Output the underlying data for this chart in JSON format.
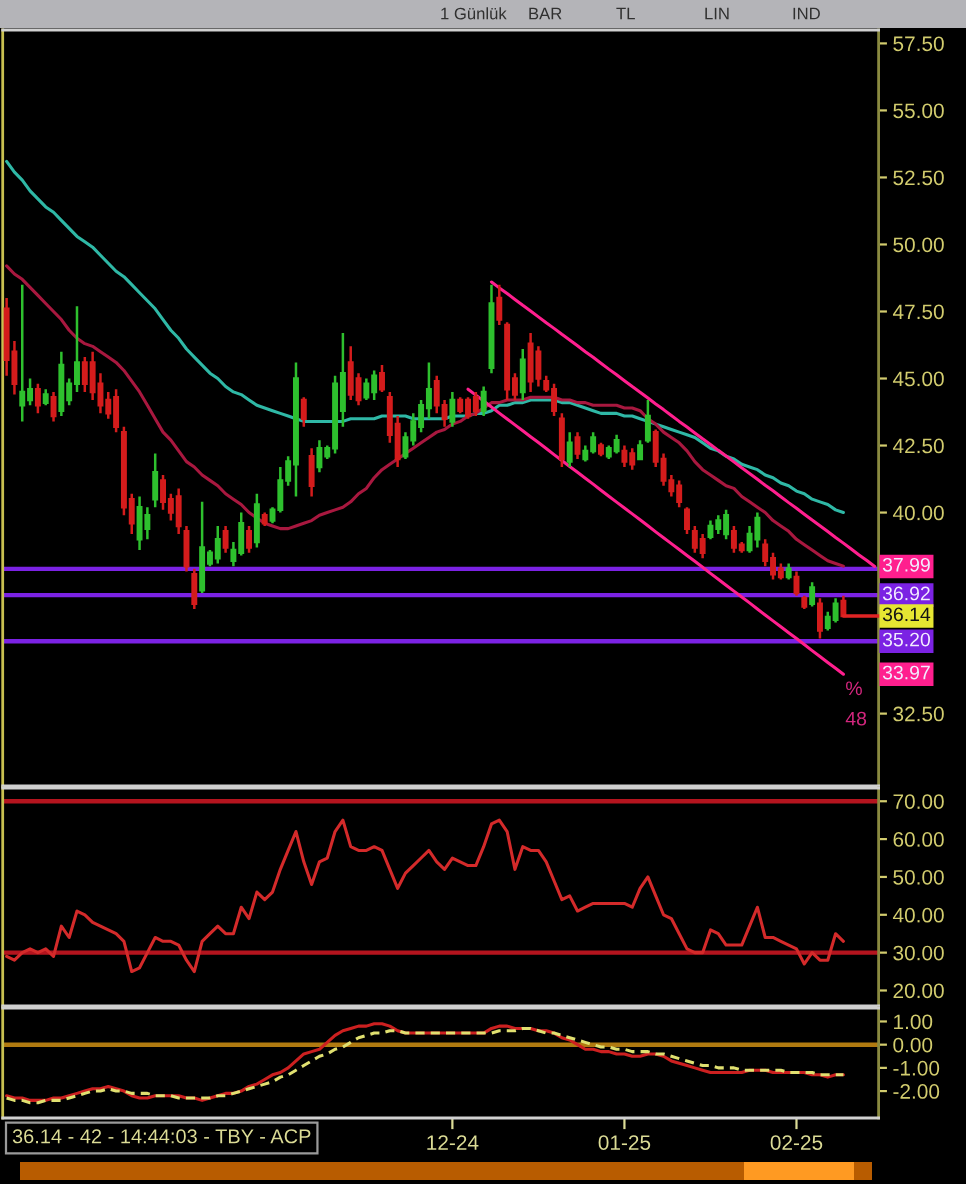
{
  "chart_data": [
    {
      "type": "other",
      "annotations": [
        "1 Günlük",
        "BAR",
        "TL",
        "LIN",
        "IND"
      ]
    },
    {
      "type": "candlestick",
      "categories": [
        null,
        null,
        null,
        null,
        null,
        null,
        null,
        null,
        null,
        null,
        null,
        null,
        null,
        null,
        null,
        null,
        null,
        null,
        null,
        null,
        null,
        null,
        null,
        null,
        null,
        null,
        null,
        null,
        null,
        null,
        null,
        null,
        null,
        null,
        null,
        null,
        null,
        null,
        null,
        null,
        null,
        null,
        null,
        null,
        null,
        null,
        null,
        null,
        null,
        null,
        null,
        null,
        null,
        null,
        null,
        null,
        null,
        null,
        null,
        null,
        null,
        null,
        null,
        null,
        null,
        null,
        null,
        null,
        null,
        null,
        null,
        null,
        null,
        null,
        null,
        null,
        null,
        null,
        null,
        null,
        null,
        null,
        null,
        null,
        null,
        null,
        null,
        null,
        null,
        null,
        null,
        null,
        null,
        null,
        null,
        null,
        null,
        null,
        null,
        null,
        null,
        null,
        null,
        null,
        null,
        null,
        null,
        null,
        null,
        null,
        null,
        null
      ],
      "ylim": [
        29.8,
        58.0
      ],
      "yticks": [
        {
          "value": 57.5,
          "label": "57.50"
        },
        {
          "value": 55,
          "label": "55.00"
        },
        {
          "value": 52.5,
          "label": "52.50"
        },
        {
          "value": 50,
          "label": "50.00"
        },
        {
          "value": 47.5,
          "label": "47.50"
        },
        {
          "value": 45,
          "label": "45.00"
        },
        {
          "value": 42.5,
          "label": "42.50"
        },
        {
          "value": 40,
          "label": "40.00"
        },
        {
          "value": 32.5,
          "label": "32.50"
        }
      ],
      "ohlc": [
        [
          47.6,
          48.0,
          45.1,
          45.7
        ],
        [
          46.0,
          46.4,
          44.4,
          44.8
        ],
        [
          44.0,
          48.5,
          43.4,
          44.5
        ],
        [
          44.2,
          45.0,
          44.0,
          44.6
        ],
        [
          44.6,
          44.8,
          43.7,
          44.0
        ],
        [
          44.1,
          44.6,
          44.0,
          44.4
        ],
        [
          44.3,
          44.5,
          43.4,
          43.6
        ],
        [
          43.8,
          46.0,
          43.6,
          45.5
        ],
        [
          44.2,
          45.0,
          44.0,
          44.8
        ],
        [
          44.8,
          47.7,
          44.5,
          45.6
        ],
        [
          45.6,
          45.8,
          44.5,
          44.8
        ],
        [
          45.6,
          46.0,
          44.2,
          44.5
        ],
        [
          44.8,
          45.2,
          43.7,
          44.0
        ],
        [
          44.2,
          44.5,
          43.5,
          43.7
        ],
        [
          44.3,
          44.6,
          43.0,
          43.2
        ],
        [
          43.0,
          43.2,
          39.9,
          40.2
        ],
        [
          40.5,
          40.7,
          39.2,
          39.6
        ],
        [
          39.0,
          40.6,
          38.6,
          40.2
        ],
        [
          39.4,
          40.2,
          39.0,
          39.9
        ],
        [
          40.5,
          42.2,
          40.2,
          41.5
        ],
        [
          41.2,
          41.4,
          40.1,
          40.4
        ],
        [
          40.5,
          40.7,
          39.7,
          40.0
        ],
        [
          40.6,
          40.9,
          39.2,
          39.5
        ],
        [
          39.3,
          39.5,
          37.8,
          38.0
        ],
        [
          37.7,
          37.9,
          36.4,
          36.6
        ],
        [
          37.1,
          40.4,
          37.0,
          38.7
        ],
        [
          38.1,
          38.6,
          38.0,
          38.5
        ],
        [
          38.3,
          39.5,
          38.1,
          39.0
        ],
        [
          39.3,
          39.5,
          38.5,
          38.7
        ],
        [
          38.2,
          38.9,
          38.0,
          38.6
        ],
        [
          38.5,
          40.0,
          38.4,
          39.6
        ],
        [
          39.3,
          39.5,
          38.5,
          38.7
        ],
        [
          38.9,
          40.7,
          38.7,
          40.3
        ],
        [
          39.9,
          40.0,
          39.5,
          39.6
        ],
        [
          39.7,
          40.2,
          39.6,
          40.1
        ],
        [
          40.1,
          41.7,
          40.0,
          41.2
        ],
        [
          41.2,
          42.1,
          41.0,
          41.9
        ],
        [
          41.8,
          45.6,
          40.6,
          45.0
        ],
        [
          44.2,
          44.3,
          43.2,
          43.5
        ],
        [
          42.1,
          42.4,
          40.6,
          41.0
        ],
        [
          41.7,
          42.7,
          41.5,
          42.4
        ],
        [
          42.1,
          42.5,
          42.0,
          42.4
        ],
        [
          42.4,
          45.1,
          42.2,
          44.8
        ],
        [
          43.8,
          46.7,
          43.2,
          45.2
        ],
        [
          45.6,
          46.2,
          44.2,
          44.4
        ],
        [
          45.0,
          45.2,
          44.0,
          44.2
        ],
        [
          44.3,
          45.0,
          44.2,
          44.8
        ],
        [
          44.5,
          45.3,
          44.2,
          45.1
        ],
        [
          45.2,
          45.5,
          44.5,
          44.6
        ],
        [
          44.3,
          44.5,
          42.6,
          42.9
        ],
        [
          43.3,
          43.6,
          41.7,
          42.0
        ],
        [
          42.1,
          43.0,
          42.0,
          42.8
        ],
        [
          42.7,
          43.7,
          42.5,
          43.4
        ],
        [
          43.2,
          44.2,
          43.0,
          44.0
        ],
        [
          43.9,
          45.6,
          43.5,
          44.6
        ],
        [
          44.9,
          45.1,
          43.7,
          44.0
        ],
        [
          44.0,
          44.2,
          43.2,
          43.5
        ],
        [
          43.4,
          44.5,
          43.2,
          44.2
        ],
        [
          44.2,
          44.3,
          43.7,
          43.8
        ],
        [
          44.2,
          44.3,
          43.5,
          43.6
        ],
        [
          44.3,
          44.5,
          43.6,
          43.8
        ],
        [
          43.8,
          44.7,
          43.6,
          44.5
        ],
        [
          45.4,
          48.5,
          45.2,
          47.8
        ],
        [
          48.0,
          48.5,
          47.0,
          47.2
        ],
        [
          47.0,
          47.1,
          44.2,
          44.6
        ],
        [
          45.0,
          45.2,
          44.2,
          44.4
        ],
        [
          44.5,
          46.1,
          44.2,
          45.7
        ],
        [
          46.3,
          46.7,
          44.5,
          44.9
        ],
        [
          46.0,
          46.2,
          44.7,
          45.0
        ],
        [
          44.9,
          45.1,
          44.5,
          44.6
        ],
        [
          44.6,
          44.8,
          43.6,
          43.8
        ],
        [
          43.5,
          43.7,
          41.7,
          42.0
        ],
        [
          41.9,
          43.0,
          41.7,
          42.6
        ],
        [
          42.8,
          43.0,
          42.0,
          42.2
        ],
        [
          42.0,
          42.5,
          41.9,
          42.3
        ],
        [
          42.3,
          43.0,
          42.2,
          42.8
        ],
        [
          42.5,
          42.6,
          42.1,
          42.2
        ],
        [
          42.1,
          42.5,
          42.0,
          42.4
        ],
        [
          42.3,
          42.9,
          42.2,
          42.7
        ],
        [
          42.3,
          42.5,
          41.7,
          41.9
        ],
        [
          42.2,
          42.4,
          41.6,
          41.8
        ],
        [
          42.0,
          42.7,
          42.0,
          42.5
        ],
        [
          42.7,
          44.2,
          42.6,
          43.6
        ],
        [
          43.0,
          43.1,
          41.7,
          41.9
        ],
        [
          42.0,
          42.2,
          41.0,
          41.2
        ],
        [
          41.2,
          41.4,
          40.6,
          40.8
        ],
        [
          41.0,
          41.2,
          40.2,
          40.4
        ],
        [
          40.1,
          40.2,
          39.2,
          39.4
        ],
        [
          39.3,
          39.5,
          38.5,
          38.7
        ],
        [
          39.0,
          39.2,
          38.3,
          38.5
        ],
        [
          39.1,
          39.7,
          39.0,
          39.5
        ],
        [
          39.4,
          39.9,
          39.2,
          39.7
        ],
        [
          39.2,
          40.1,
          39.0,
          39.9
        ],
        [
          39.3,
          39.5,
          38.5,
          38.7
        ],
        [
          38.8,
          38.9,
          38.5,
          38.6
        ],
        [
          38.6,
          39.5,
          38.5,
          39.2
        ],
        [
          39.0,
          40.0,
          38.7,
          39.8
        ],
        [
          38.8,
          39.0,
          38.0,
          38.2
        ],
        [
          38.3,
          38.5,
          37.5,
          37.7
        ],
        [
          37.9,
          38.1,
          37.5,
          37.6
        ],
        [
          37.6,
          38.1,
          37.5,
          37.9
        ],
        [
          37.6,
          37.8,
          36.9,
          37.0
        ],
        [
          36.8,
          36.9,
          36.4,
          36.5
        ],
        [
          36.6,
          37.4,
          36.5,
          37.2
        ],
        [
          36.6,
          36.8,
          35.3,
          35.6
        ],
        [
          35.7,
          36.3,
          35.6,
          36.1
        ],
        [
          36.0,
          36.8,
          35.9,
          36.6
        ],
        [
          36.7,
          36.9,
          36.1,
          36.14
        ],
        null,
        null,
        null,
        null
      ],
      "colors": [
        "#d41c1c",
        "#d41c1c",
        "#2ec02e",
        "#2ec02e",
        "#d41c1c",
        "#2ec02e",
        "#d41c1c",
        "#2ec02e",
        "#2ec02e",
        "#2ec02e",
        "#d41c1c",
        "#d41c1c",
        "#d41c1c",
        "#d41c1c",
        "#d41c1c",
        "#d41c1c",
        "#d41c1c",
        "#2ec02e",
        "#2ec02e",
        "#2ec02e",
        "#d41c1c",
        "#d41c1c",
        "#d41c1c",
        "#d41c1c",
        "#d41c1c",
        "#2ec02e",
        "#2ec02e",
        "#2ec02e",
        "#d41c1c",
        "#2ec02e",
        "#2ec02e",
        "#d41c1c",
        "#2ec02e",
        "#d41c1c",
        "#2ec02e",
        "#2ec02e",
        "#2ec02e",
        "#2ec02e",
        "#d41c1c",
        "#d41c1c",
        "#2ec02e",
        "#2ec02e",
        "#2ec02e",
        "#2ec02e",
        "#d41c1c",
        "#d41c1c",
        "#2ec02e",
        "#2ec02e",
        "#d41c1c",
        "#d41c1c",
        "#d41c1c",
        "#2ec02e",
        "#2ec02e",
        "#2ec02e",
        "#2ec02e",
        "#d41c1c",
        "#d41c1c",
        "#2ec02e",
        "#d41c1c",
        "#d41c1c",
        "#d41c1c",
        "#2ec02e",
        "#2ec02e",
        "#d41c1c",
        "#d41c1c",
        "#d41c1c",
        "#2ec02e",
        "#d41c1c",
        "#d41c1c",
        "#d41c1c",
        "#d41c1c",
        "#d41c1c",
        "#2ec02e",
        "#d41c1c",
        "#2ec02e",
        "#2ec02e",
        "#d41c1c",
        "#2ec02e",
        "#2ec02e",
        "#d41c1c",
        "#d41c1c",
        "#2ec02e",
        "#2ec02e",
        "#d41c1c",
        "#d41c1c",
        "#d41c1c",
        "#d41c1c",
        "#d41c1c",
        "#d41c1c",
        "#d41c1c",
        "#2ec02e",
        "#2ec02e",
        "#2ec02e",
        "#d41c1c",
        "#d41c1c",
        "#2ec02e",
        "#2ec02e",
        "#d41c1c",
        "#d41c1c",
        "#d41c1c",
        "#2ec02e",
        "#d41c1c",
        "#d41c1c",
        "#2ec02e",
        "#d41c1c",
        "#2ec02e",
        "#2ec02e",
        "#d41c1c",
        null,
        null,
        null,
        null
      ],
      "series": [
        {
          "type": "line",
          "color": "#2fb8a6",
          "values": [
            53.1,
            52.7,
            52.4,
            52.0,
            51.7,
            51.4,
            51.2,
            50.9,
            50.6,
            50.3,
            50.1,
            49.9,
            49.6,
            49.3,
            49.0,
            48.8,
            48.5,
            48.2,
            47.9,
            47.6,
            47.2,
            46.8,
            46.5,
            46.1,
            45.8,
            45.5,
            45.2,
            45.0,
            44.7,
            44.5,
            44.4,
            44.2,
            44.0,
            43.9,
            43.8,
            43.7,
            43.6,
            43.5,
            43.4,
            43.4,
            43.4,
            43.4,
            43.4,
            43.4,
            43.5,
            43.5,
            43.5,
            43.5,
            43.6,
            43.6,
            43.6,
            43.6,
            43.5,
            43.5,
            43.5,
            43.5,
            43.5,
            43.6,
            43.6,
            43.6,
            43.7,
            43.7,
            43.8,
            44.0,
            44.0,
            44.1,
            44.1,
            44.2,
            44.2,
            44.2,
            44.2,
            44.1,
            44.1,
            44.0,
            43.9,
            43.8,
            43.7,
            43.7,
            43.7,
            43.6,
            43.6,
            43.5,
            43.4,
            43.3,
            43.2,
            43.1,
            43.0,
            42.9,
            42.8,
            42.6,
            42.4,
            42.3,
            42.1,
            42.0,
            41.8,
            41.7,
            41.6,
            41.4,
            41.3,
            41.1,
            41.0,
            40.8,
            40.7,
            40.5,
            40.4,
            40.3,
            40.1,
            40.0,
            null,
            null,
            null,
            null
          ]
        },
        {
          "type": "line",
          "color": "#a8183f",
          "values": [
            49.2,
            48.9,
            48.7,
            48.4,
            48.1,
            47.8,
            47.5,
            47.2,
            46.8,
            46.5,
            46.3,
            46.2,
            46.0,
            45.8,
            45.6,
            45.3,
            44.9,
            44.5,
            44.0,
            43.5,
            43.0,
            42.7,
            42.3,
            41.9,
            41.7,
            41.4,
            41.2,
            41.0,
            40.7,
            40.5,
            40.3,
            40.0,
            39.8,
            39.6,
            39.5,
            39.4,
            39.4,
            39.5,
            39.6,
            39.7,
            39.9,
            40.0,
            40.1,
            40.2,
            40.4,
            40.7,
            40.9,
            41.3,
            41.6,
            41.8,
            42.0,
            42.2,
            42.4,
            42.6,
            42.8,
            43.0,
            43.1,
            43.3,
            43.4,
            43.6,
            43.7,
            43.9,
            44.1,
            44.1,
            44.2,
            44.2,
            44.2,
            44.3,
            44.3,
            44.3,
            44.3,
            44.2,
            44.2,
            44.1,
            44.1,
            44.0,
            44.0,
            44.0,
            44.0,
            43.9,
            43.9,
            43.8,
            43.5,
            43.3,
            43.0,
            42.8,
            42.6,
            42.3,
            41.9,
            41.6,
            41.4,
            41.2,
            41.0,
            40.9,
            40.6,
            40.4,
            40.2,
            40.0,
            39.7,
            39.5,
            39.3,
            39.0,
            38.8,
            38.6,
            38.4,
            38.2,
            38.1,
            38.0,
            null,
            null,
            null,
            null
          ]
        },
        {
          "type": "line",
          "color": "#ff1f8e",
          "values": [
            null,
            null,
            null,
            null,
            null,
            null,
            null,
            null,
            null,
            null,
            null,
            null,
            null,
            null,
            null,
            null,
            null,
            null,
            null,
            null,
            null,
            null,
            null,
            null,
            null,
            null,
            null,
            null,
            null,
            null,
            null,
            null,
            null,
            null,
            null,
            null,
            null,
            null,
            null,
            null,
            null,
            null,
            null,
            null,
            null,
            null,
            null,
            null,
            null,
            null,
            null,
            null,
            null,
            null,
            null,
            null,
            null,
            null,
            null,
            null,
            null,
            null,
            48.6,
            48.38,
            48.17,
            47.95,
            47.73,
            47.52,
            47.3,
            47.08,
            46.87,
            46.65,
            46.44,
            46.22,
            46.0,
            45.79,
            45.57,
            45.35,
            45.14,
            44.92,
            44.7,
            44.49,
            44.27,
            44.05,
            43.84,
            43.62,
            43.4,
            43.19,
            42.97,
            42.75,
            42.54,
            42.32,
            42.11,
            41.89,
            41.67,
            41.46,
            41.24,
            41.02,
            40.81,
            40.59,
            40.37,
            40.16,
            39.94,
            39.72,
            39.51,
            39.29,
            39.07,
            38.86,
            38.64,
            38.42,
            38.21,
            37.99
          ],
          "value_labels": [
            null,
            null,
            null,
            null,
            null,
            null,
            null,
            null,
            null,
            null,
            null,
            null,
            null,
            null,
            null,
            null,
            null,
            null,
            null,
            null,
            null,
            null,
            null,
            null,
            null,
            null,
            null,
            null,
            null,
            null,
            null,
            null,
            null,
            null,
            null,
            null,
            null,
            null,
            null,
            null,
            null,
            null,
            null,
            null,
            null,
            null,
            null,
            null,
            null,
            null,
            null,
            null,
            null,
            null,
            null,
            null,
            null,
            null,
            null,
            null,
            null,
            null,
            null,
            null,
            null,
            null,
            null,
            null,
            null,
            null,
            null,
            null,
            null,
            null,
            null,
            null,
            null,
            null,
            null,
            null,
            null,
            null,
            null,
            null,
            null,
            null,
            null,
            null,
            null,
            null,
            null,
            null,
            null,
            null,
            null,
            null,
            null,
            null,
            null,
            null,
            null,
            null,
            null,
            null,
            null,
            null,
            null,
            null,
            null,
            null,
            null,
            "37.99"
          ]
        },
        {
          "type": "line",
          "color": "#ff1f8e",
          "values": [
            null,
            null,
            null,
            null,
            null,
            null,
            null,
            null,
            null,
            null,
            null,
            null,
            null,
            null,
            null,
            null,
            null,
            null,
            null,
            null,
            null,
            null,
            null,
            null,
            null,
            null,
            null,
            null,
            null,
            null,
            null,
            null,
            null,
            null,
            null,
            null,
            null,
            null,
            null,
            null,
            null,
            null,
            null,
            null,
            null,
            null,
            null,
            null,
            null,
            null,
            null,
            null,
            null,
            null,
            null,
            null,
            null,
            null,
            null,
            44.6,
            44.38,
            44.16,
            43.94,
            43.71,
            43.49,
            43.27,
            43.05,
            42.83,
            42.61,
            42.39,
            42.16,
            41.94,
            41.72,
            41.5,
            41.28,
            41.06,
            40.83,
            40.61,
            40.39,
            40.17,
            39.95,
            39.73,
            39.51,
            39.28,
            39.06,
            38.84,
            38.62,
            38.4,
            38.18,
            37.96,
            37.73,
            37.51,
            37.29,
            37.07,
            36.85,
            36.63,
            36.4,
            36.18,
            35.96,
            35.74,
            35.52,
            35.3,
            35.08,
            34.85,
            34.63,
            34.41,
            34.19,
            33.97,
            null,
            null,
            null,
            null
          ]
        }
      ],
      "ref_lines": [
        {
          "axis": "y",
          "value": 37.9,
          "color": "#7b22e3"
        },
        {
          "axis": "y",
          "value": 36.92,
          "label": "36.92",
          "color": "#7b22e3"
        },
        {
          "axis": "y",
          "value": 35.2,
          "label": "35.20",
          "color": "#7b22e3"
        }
      ],
      "annotations": [
        {
          "text": "36.14",
          "y": 36.14
        },
        {
          "text": "33.97",
          "y": 33.97
        },
        "%",
        "48"
      ]
    },
    {
      "type": "line",
      "categories": [
        null,
        null,
        null,
        null,
        null,
        null,
        null,
        null,
        null,
        null,
        null,
        null,
        null,
        null,
        null,
        null,
        null,
        null,
        null,
        null,
        null,
        null,
        null,
        null,
        null,
        null,
        null,
        null,
        null,
        null,
        null,
        null,
        null,
        null,
        null,
        null,
        null,
        null,
        null,
        null,
        null,
        null,
        null,
        null,
        null,
        null,
        null,
        null,
        null,
        null,
        null,
        null,
        null,
        null,
        null,
        null,
        null,
        null,
        null,
        null,
        null,
        null,
        null,
        null,
        null,
        null,
        null,
        null,
        null,
        null,
        null,
        null,
        null,
        null,
        null,
        null,
        null,
        null,
        null,
        null,
        null,
        null,
        null,
        null,
        null,
        null,
        null,
        null,
        null,
        null,
        null,
        null,
        null,
        null,
        null,
        null,
        null,
        null,
        null,
        null,
        null,
        null,
        null,
        null,
        null,
        null,
        null,
        null,
        null,
        null,
        null,
        null
      ],
      "ylim": [
        15.9,
        73.5
      ],
      "yticks": [
        {
          "value": 70,
          "label": "70.00"
        },
        {
          "value": 60,
          "label": "60.00"
        },
        {
          "value": 50,
          "label": "50.00"
        },
        {
          "value": 40,
          "label": "40.00"
        },
        {
          "value": 30,
          "label": "30.00"
        },
        {
          "value": 20,
          "label": "20.00"
        }
      ],
      "series": [
        {
          "color": "#d42a2a",
          "values": [
            29,
            28,
            30,
            31,
            30,
            31,
            29,
            37,
            34,
            41,
            40,
            38,
            37,
            36,
            35,
            33,
            25,
            26,
            30,
            34,
            33,
            33,
            32,
            28,
            25,
            33,
            35,
            37,
            35,
            35,
            42,
            39,
            46,
            44,
            46,
            52,
            57,
            62,
            54,
            48,
            54,
            55,
            62,
            65,
            58,
            57,
            57,
            58,
            57,
            52,
            47,
            51,
            53,
            55,
            57,
            54,
            52,
            55,
            54,
            53,
            53,
            58,
            64,
            65,
            62,
            52,
            58,
            57,
            57,
            54,
            49,
            44,
            45,
            41,
            42,
            43,
            43,
            43,
            43,
            43,
            42,
            47,
            50,
            45,
            40,
            39,
            35,
            31,
            30,
            30,
            36,
            35,
            32,
            32,
            32,
            37,
            42,
            34,
            34,
            33,
            32,
            31,
            27,
            30,
            28,
            28,
            35,
            33,
            null,
            null,
            null,
            null
          ]
        }
      ],
      "ref_lines": [
        {
          "axis": "y",
          "value": 70,
          "color": "#b4141e"
        },
        {
          "axis": "y",
          "value": 30,
          "color": "#b4141e"
        }
      ]
    },
    {
      "type": "line",
      "categories": [
        null,
        null,
        null,
        null,
        null,
        null,
        null,
        null,
        null,
        null,
        null,
        null,
        null,
        null,
        null,
        null,
        null,
        null,
        null,
        null,
        null,
        null,
        null,
        null,
        null,
        null,
        null,
        null,
        null,
        null,
        null,
        null,
        null,
        null,
        null,
        null,
        null,
        null,
        null,
        null,
        null,
        null,
        null,
        null,
        null,
        null,
        null,
        null,
        null,
        null,
        null,
        null,
        null,
        null,
        null,
        null,
        null,
        "12-24",
        null,
        null,
        null,
        null,
        null,
        null,
        null,
        null,
        null,
        null,
        null,
        null,
        null,
        null,
        null,
        null,
        null,
        null,
        null,
        null,
        null,
        "01-25",
        null,
        null,
        null,
        null,
        null,
        null,
        null,
        null,
        null,
        null,
        null,
        null,
        null,
        null,
        null,
        null,
        null,
        null,
        null,
        null,
        null,
        "02-25",
        null,
        null,
        null,
        null,
        null,
        null,
        null,
        null,
        null,
        null
      ],
      "ylim": [
        -3.16,
        1.58
      ],
      "yticks": [
        {
          "value": 1,
          "label": "1.00"
        },
        {
          "value": 0,
          "label": "0.00"
        },
        {
          "value": -1,
          "label": "-1.00"
        },
        {
          "value": -2,
          "label": "-2.00"
        }
      ],
      "series": [
        {
          "color": "#cc2020",
          "values": [
            -2.2,
            -2.3,
            -2.3,
            -2.4,
            -2.4,
            -2.4,
            -2.3,
            -2.3,
            -2.2,
            -2.1,
            -2.0,
            -1.9,
            -1.9,
            -1.8,
            -1.9,
            -2.0,
            -2.2,
            -2.3,
            -2.3,
            -2.2,
            -2.2,
            -2.2,
            -2.2,
            -2.3,
            -2.3,
            -2.4,
            -2.3,
            -2.2,
            -2.1,
            -2.1,
            -2.0,
            -1.8,
            -1.7,
            -1.5,
            -1.3,
            -1.2,
            -1.0,
            -0.7,
            -0.4,
            -0.3,
            -0.2,
            0.1,
            0.4,
            0.6,
            0.7,
            0.8,
            0.8,
            0.9,
            0.9,
            0.8,
            0.6,
            0.5,
            0.5,
            0.5,
            0.5,
            0.5,
            0.5,
            0.5,
            0.5,
            0.5,
            0.5,
            0.5,
            0.7,
            0.8,
            0.8,
            0.7,
            0.7,
            0.7,
            0.6,
            0.6,
            0.5,
            0.3,
            0.2,
            0.0,
            -0.2,
            -0.2,
            -0.3,
            -0.3,
            -0.4,
            -0.4,
            -0.5,
            -0.5,
            -0.4,
            -0.4,
            -0.5,
            -0.7,
            -0.8,
            -0.9,
            -1.0,
            -1.1,
            -1.2,
            -1.2,
            -1.2,
            -1.2,
            -1.2,
            -1.1,
            -1.1,
            -1.1,
            -1.2,
            -1.2,
            -1.2,
            -1.2,
            -1.2,
            -1.3,
            -1.3,
            -1.4,
            -1.3,
            -1.3,
            null,
            null,
            null,
            null
          ]
        },
        {
          "color": "#e0e070",
          "line_style": "dashed",
          "values": [
            -2.3,
            -2.4,
            -2.4,
            -2.5,
            -2.5,
            -2.4,
            -2.4,
            -2.4,
            -2.3,
            -2.2,
            -2.1,
            -2.0,
            -2.0,
            -1.9,
            -2.0,
            -2.0,
            -2.1,
            -2.1,
            -2.1,
            -2.2,
            -2.2,
            -2.2,
            -2.3,
            -2.3,
            -2.3,
            -2.3,
            -2.3,
            -2.2,
            -2.2,
            -2.1,
            -2.0,
            -1.9,
            -1.8,
            -1.7,
            -1.6,
            -1.4,
            -1.3,
            -1.1,
            -0.9,
            -0.7,
            -0.5,
            -0.4,
            -0.2,
            -0.1,
            0.1,
            0.3,
            0.4,
            0.5,
            0.5,
            0.6,
            0.6,
            0.5,
            0.5,
            0.5,
            0.5,
            0.5,
            0.5,
            0.5,
            0.5,
            0.5,
            0.5,
            0.5,
            0.5,
            0.6,
            0.6,
            0.6,
            0.7,
            0.7,
            0.6,
            0.5,
            0.5,
            0.4,
            0.3,
            0.2,
            0.1,
            0.0,
            -0.1,
            -0.1,
            -0.2,
            -0.2,
            -0.3,
            -0.3,
            -0.3,
            -0.4,
            -0.4,
            -0.5,
            -0.6,
            -0.7,
            -0.8,
            -0.9,
            -0.9,
            -1.0,
            -1.0,
            -1.0,
            -1.1,
            -1.1,
            -1.1,
            -1.1,
            -1.1,
            -1.1,
            -1.2,
            -1.2,
            -1.2,
            -1.2,
            -1.3,
            -1.3,
            -1.3,
            -1.3,
            null,
            null,
            null,
            null
          ]
        }
      ],
      "ref_lines": [
        {
          "axis": "y",
          "value": 0,
          "color": "#b07a10"
        }
      ],
      "annotations": [
        "36.14 - 42 - 14:44:03 - TBY - ACP"
      ]
    }
  ]
}
